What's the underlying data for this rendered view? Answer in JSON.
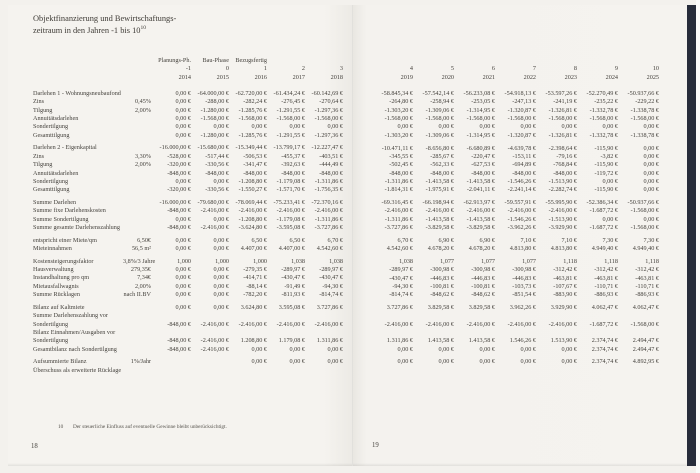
{
  "title": {
    "line1": "Objektfinanzierung und Bewirtschaftungs-",
    "line2": "zeitraum in den Jahren -1 bis 10",
    "footnote_marker": "10"
  },
  "left_page": {
    "page_number": "18",
    "footnote_marker": "10",
    "footnote_text": "Der steuerliche Einfluss auf eventuelle Gewinne bleibt unberücksichtigt.",
    "header_lines": [
      [
        "Planungs-Ph.",
        "Bau-Phase",
        "Bezugsfertig",
        "",
        ""
      ],
      [
        "-1",
        "0",
        "1",
        "2",
        "3"
      ],
      [
        "2014",
        "2015",
        "2016",
        "2017",
        "2018"
      ]
    ]
  },
  "right_page": {
    "page_number": "19",
    "header_lines": [
      [
        "4",
        "5",
        "6",
        "7",
        "8",
        "9",
        "10"
      ],
      [
        "2019",
        "2020",
        "2021",
        "2022",
        "2023",
        "2024",
        "2025"
      ]
    ]
  },
  "table": {
    "left_column_count": 5,
    "right_column_count": 7,
    "rows": [
      {
        "label": "Darlehen 1 - Wohnungsneubaufond",
        "qual": "",
        "values": [
          "0,00 €",
          "-64.000,00 €",
          "-62.720,00 €",
          "-61.434,24 €",
          "-60.142,69 €",
          "-58.845,34 €",
          "-57.542,14 €",
          "-56.233,08 €",
          "-54.918,13 €",
          "-53.597,26 €",
          "-52.270,49 €",
          "-50.937,66 €"
        ]
      },
      {
        "label": "Zins",
        "qual": "0,45%",
        "values": [
          "0,00 €",
          "-288,00 €",
          "-282,24 €",
          "-276,45 €",
          "-270,64 €",
          "-264,80 €",
          "-258,94 €",
          "-253,05 €",
          "-247,13 €",
          "-241,19 €",
          "-235,22 €",
          "-229,22 €"
        ]
      },
      {
        "label": "Tilgung",
        "qual": "2,00%",
        "values": [
          "0,00 €",
          "-1.280,00 €",
          "-1.285,76 €",
          "-1.291,55 €",
          "-1.297,36 €",
          "-1.303,20 €",
          "-1.309,06 €",
          "-1.314,95 €",
          "-1.320,87 €",
          "-1.326,81 €",
          "-1.332,78 €",
          "-1.338,78 €"
        ]
      },
      {
        "label": "Annuitätsdarlehen",
        "qual": "",
        "values": [
          "0,00 €",
          "-1.568,00 €",
          "-1.568,00 €",
          "-1.568,00 €",
          "-1.568,00 €",
          "-1.568,00 €",
          "-1.568,00 €",
          "-1.568,00 €",
          "-1.568,00 €",
          "-1.568,00 €",
          "-1.568,00 €",
          "-1.568,00 €"
        ]
      },
      {
        "label": "Sondertilgung",
        "qual": "",
        "values": [
          "0,00 €",
          "0,00 €",
          "0,00 €",
          "0,00 €",
          "0,00 €",
          "0,00 €",
          "0,00 €",
          "0,00 €",
          "0,00 €",
          "0,00 €",
          "0,00 €",
          "0,00 €"
        ]
      },
      {
        "label": "Gesamttilgung",
        "qual": "",
        "values": [
          "0,00 €",
          "-1.280,00 €",
          "-1.285,76 €",
          "-1.291,55 €",
          "-1.297,36 €",
          "-1.303,20 €",
          "-1.309,06 €",
          "-1.314,95 €",
          "-1.320,87 €",
          "-1.326,81 €",
          "-1.332,78 €",
          "-1.338,78 €"
        ]
      },
      {
        "type": "gap"
      },
      {
        "label": "Darlehen 2 - Eigenkapital",
        "qual": "",
        "values": [
          "-16.000,00 €",
          "-15.680,00 €",
          "-15.349,44 €",
          "-13.799,17 €",
          "-12.227,47 €",
          "-10.471,11 €",
          "-8.656,80 €",
          "-6.680,89 €",
          "-4.639,78 €",
          "-2.398,64 €",
          "-115,90 €",
          "0,00 €"
        ]
      },
      {
        "label": "Zins",
        "qual": "3,30%",
        "values": [
          "-528,00 €",
          "-517,44 €",
          "-506,53 €",
          "-455,37 €",
          "-403,51 €",
          "-345,55 €",
          "-285,67 €",
          "-220,47 €",
          "-153,11 €",
          "-79,16 €",
          "-3,82 €",
          "0,00 €"
        ]
      },
      {
        "label": "Tilgung",
        "qual": "2,00%",
        "values": [
          "-320,00 €",
          "-330,56 €",
          "-341,47 €",
          "-392,63 €",
          "-444,49 €",
          "-502,45 €",
          "-562,33 €",
          "-627,53 €",
          "-694,89 €",
          "-768,84 €",
          "-115,90 €",
          "0,00 €"
        ]
      },
      {
        "label": "Annuitätsdarlehen",
        "qual": "",
        "values": [
          "-848,00 €",
          "-848,00 €",
          "-848,00 €",
          "-848,00 €",
          "-848,00 €",
          "-848,00 €",
          "-848,00 €",
          "-848,00 €",
          "-848,00 €",
          "-848,00 €",
          "-119,72 €",
          "0,00 €"
        ]
      },
      {
        "label": "Sondertilgung",
        "qual": "",
        "values": [
          "0,00 €",
          "0,00 €",
          "-1.208,80 €",
          "-1.179,08 €",
          "-1.311,86 €",
          "-1.311,86 €",
          "-1.413,58 €",
          "-1.413,58 €",
          "-1.546,26 €",
          "-1.513,90 €",
          "0,00 €",
          "0,00 €"
        ]
      },
      {
        "label": "Gesamttilgung",
        "qual": "",
        "values": [
          "-320,00 €",
          "-330,56 €",
          "-1.550,27 €",
          "-1.571,70 €",
          "-1.756,35 €",
          "-1.814,31 €",
          "-1.975,91 €",
          "-2.041,11 €",
          "-2.241,14 €",
          "-2.282,74 €",
          "-115,90 €",
          "0,00 €"
        ]
      },
      {
        "type": "gap"
      },
      {
        "label": "Summe Darlehen",
        "qual": "",
        "values": [
          "-16.000,00 €",
          "-79.680,00 €",
          "-78.069,44 €",
          "-75.233,41 €",
          "-72.370,16 €",
          "-69.316,45 €",
          "-66.198,94 €",
          "-62.913,97 €",
          "-59.557,91 €",
          "-55.995,90 €",
          "-52.386,34 €",
          "-50.937,66 €"
        ]
      },
      {
        "label": "Summe fixe Darlehenskosten",
        "qual": "",
        "values": [
          "-848,00 €",
          "-2.416,00 €",
          "-2.416,00 €",
          "-2.416,00 €",
          "-2.416,00 €",
          "-2.416,00 €",
          "-2.416,00 €",
          "-2.416,00 €",
          "-2.416,00 €",
          "-2.416,00 €",
          "-1.687,72 €",
          "-1.568,00 €"
        ]
      },
      {
        "label": "Summe Sondertilgung",
        "qual": "",
        "values": [
          "0,00 €",
          "0,00 €",
          "-1.208,80 €",
          "-1.179,08 €",
          "-1.311,86 €",
          "-1.311,86 €",
          "-1.413,58 €",
          "-1.413,58 €",
          "-1.546,26 €",
          "-1.513,90 €",
          "0,00 €",
          "0,00 €"
        ]
      },
      {
        "label": "Summe gesamte Darlehenszahlung",
        "qual": "",
        "values": [
          "-848,00 €",
          "-2.416,00 €",
          "-3.624,80 €",
          "-3.595,08 €",
          "-3.727,86 €",
          "-3.727,86 €",
          "-3.829,58 €",
          "-3.829,58 €",
          "-3.962,26 €",
          "-3.929,90 €",
          "-1.687,72 €",
          "-1.568,00 €"
        ]
      },
      {
        "type": "gap"
      },
      {
        "label": "entspricht einer Miete/qm",
        "qual": "6,50€",
        "values": [
          "0,00 €",
          "0,00 €",
          "6,50 €",
          "6,50 €",
          "6,70 €",
          "6,70 €",
          "6,90 €",
          "6,90 €",
          "7,10 €",
          "7,10 €",
          "7,30 €",
          "7,30 €"
        ]
      },
      {
        "label": "Mieteinnahmen",
        "qual": "56,5 m²",
        "values": [
          "0,00 €",
          "0,00 €",
          "4.407,00 €",
          "4.407,00 €",
          "4.542,60 €",
          "4.542,60 €",
          "4.678,20 €",
          "4.678,20 €",
          "4.813,80 €",
          "4.813,80 €",
          "4.949,40 €",
          "4.949,40 €"
        ]
      },
      {
        "type": "gap"
      },
      {
        "label": "Kostensteigerungsfaktor",
        "qual": "3,8%/3 Jahre",
        "values": [
          "1,000",
          "1,000",
          "1,000",
          "1,038",
          "1,038",
          "1,038",
          "1,077",
          "1,077",
          "1,077",
          "1,118",
          "1,118",
          "1,118"
        ]
      },
      {
        "label": "Hausverwaltung",
        "qual": "279,35€",
        "values": [
          "0,00 €",
          "0,00 €",
          "-279,35 €",
          "-289,97 €",
          "-289,97 €",
          "-289,97 €",
          "-300,98 €",
          "-300,98 €",
          "-300,98 €",
          "-312,42 €",
          "-312,42 €",
          "-312,42 €"
        ]
      },
      {
        "label": "Instandhaltung pro qm",
        "qual": "7,34€",
        "values": [
          "0,00 €",
          "0,00 €",
          "-414,71 €",
          "-430,47 €",
          "-430,47 €",
          "-430,47 €",
          "-446,83 €",
          "-446,83 €",
          "-446,83 €",
          "-463,81 €",
          "-463,81 €",
          "-463,81 €"
        ]
      },
      {
        "label": "Mietausfallwagnis",
        "qual": "2,00%",
        "values": [
          "0,00 €",
          "0,00 €",
          "-88,14 €",
          "-91,49 €",
          "-94,30 €",
          "-94,30 €",
          "-100,81 €",
          "-100,81 €",
          "-103,73 €",
          "-107,67 €",
          "-110,71 €",
          "-110,71 €"
        ]
      },
      {
        "label": "Summe Rücklagen",
        "qual": "nach II.BV",
        "values": [
          "0,00 €",
          "0,00 €",
          "-782,20 €",
          "-811,93 €",
          "-814,74 €",
          "-814,74 €",
          "-848,62 €",
          "-848,62 €",
          "-851,54 €",
          "-883,90 €",
          "-886,93 €",
          "-886,93 €"
        ]
      },
      {
        "type": "gap"
      },
      {
        "label": "Bilanz auf Kaltmiete",
        "qual": "",
        "values": [
          "0,00 €",
          "0,00 €",
          "3.624,80 €",
          "3.595,08 €",
          "3.727,86 €",
          "3.727,86 €",
          "3.829,58 €",
          "3.829,58 €",
          "3.962,26 €",
          "3.929,90 €",
          "4.062,47 €",
          "4.062,47 €"
        ]
      },
      {
        "type": "label-only",
        "label": "Summe Darlehenszahlung vor",
        "qual": ""
      },
      {
        "label": "Sondertilgung",
        "qual": "",
        "values": [
          "-848,00 €",
          "-2.416,00 €",
          "-2.416,00 €",
          "-2.416,00 €",
          "-2.416,00 €",
          "-2.416,00 €",
          "-2.416,00 €",
          "-2.416,00 €",
          "-2.416,00 €",
          "-2.416,00 €",
          "-1.687,72 €",
          "-1.568,00 €"
        ]
      },
      {
        "type": "label-only",
        "label": "Bilanz Einnahmen/Ausgaben vor",
        "qual": ""
      },
      {
        "label": "Sondertilgung",
        "qual": "",
        "values": [
          "-848,00 €",
          "-2.416,00 €",
          "1.208,80 €",
          "1.179,08 €",
          "1.311,86 €",
          "1.311,86 €",
          "1.413,58 €",
          "1.413,58 €",
          "1.546,26 €",
          "1.513,90 €",
          "2.374,74 €",
          "2.494,47 €"
        ]
      },
      {
        "label": "Gesamtbilanz nach Sondertilgung",
        "qual": "",
        "values": [
          "-848,00 €",
          "-2.416,00 €",
          "0,00 €",
          "0,00 €",
          "0,00 €",
          "0,00 €",
          "0,00 €",
          "0,00 €",
          "0,00 €",
          "0,00 €",
          "2.374,74 €",
          "2.494,47 €"
        ]
      },
      {
        "type": "gap"
      },
      {
        "label": "Aufsummierte Bilanz",
        "qual": "1%/Jahr",
        "values": [
          "",
          "",
          "0,00 €",
          "0,00 €",
          "0,00 €",
          "0,00 €",
          "0,00 €",
          "0,00 €",
          "0,00 €",
          "0,00 €",
          "2.374,74 €",
          "4.892,95 €"
        ]
      },
      {
        "label": "Überschuss als erweiterte Rücklage",
        "qual": "",
        "values": [
          "",
          "",
          "",
          "",
          "",
          "",
          "",
          "",
          "",
          "",
          "",
          ""
        ]
      }
    ]
  }
}
